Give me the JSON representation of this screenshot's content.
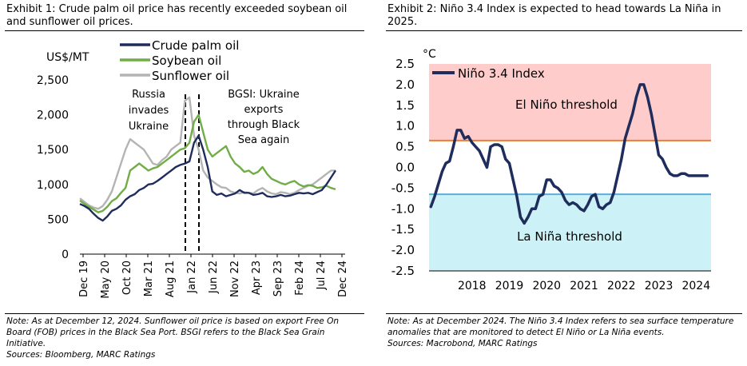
{
  "left_title": "Exhibit 1: Crude palm oil price has recently exceeded soybean oil and sunflower oil prices.",
  "left_note": "Note: As at December 12, 2024. Sunflower oil price is based on export Free On Board (FOB) prices in the Black Sea Port. BSGI refers to the Black Sea Grain Initiative.",
  "left_sources": "Sources: Bloomberg, MARC Ratings",
  "right_title": "Exhibit 2: Niño 3.4 Index is expected to head towards La Niña in 2025.",
  "right_note": "Note: As at December 2024. The Niño 3.4 Index refers to sea surface temperature anomalies that are monitored to detect El Niño or La Niña events.",
  "right_sources": "Sources: Macrobond, MARC Ratings",
  "chart_data": [
    {
      "type": "line",
      "ylabel": "US$/MT",
      "ylim": [
        0,
        2500
      ],
      "yticks": [
        "0",
        "500",
        "1,000",
        "1,500",
        "2,000",
        "2,500"
      ],
      "xticks": [
        "Dec 19",
        "May 20",
        "Oct 20",
        "Mar 21",
        "Aug 21",
        "Jan 22",
        "Jun 22",
        "Nov 22",
        "Apr 23",
        "Sep 23",
        "Feb 24",
        "Jul 24",
        "Dec 24"
      ],
      "legend_position": "top",
      "annotations": {
        "russia": [
          "Russia",
          "invades",
          "Ukraine"
        ],
        "bsgi": [
          "BGSI: Ukraine",
          "exports",
          "through Black",
          "Sea again"
        ]
      },
      "series": [
        {
          "name": "Crude palm oil",
          "color": "#1f2d5c",
          "values": [
            720,
            690,
            650,
            580,
            520,
            480,
            540,
            620,
            650,
            700,
            780,
            830,
            860,
            920,
            950,
            1000,
            1010,
            1050,
            1100,
            1150,
            1200,
            1250,
            1280,
            1300,
            1330,
            1600,
            1700,
            1500,
            1250,
            900,
            850,
            870,
            830,
            850,
            870,
            920,
            880,
            880,
            850,
            860,
            880,
            830,
            820,
            830,
            850,
            830,
            840,
            860,
            880,
            870,
            880,
            860,
            890,
            920,
            1000,
            1100,
            1200
          ]
        },
        {
          "name": "Soybean oil",
          "color": "#70ad47",
          "values": [
            770,
            720,
            680,
            640,
            600,
            620,
            680,
            760,
            800,
            880,
            950,
            1200,
            1250,
            1300,
            1250,
            1200,
            1230,
            1250,
            1300,
            1350,
            1400,
            1450,
            1500,
            1520,
            1600,
            1900,
            2000,
            1750,
            1500,
            1400,
            1450,
            1500,
            1550,
            1400,
            1300,
            1250,
            1180,
            1200,
            1150,
            1180,
            1250,
            1150,
            1080,
            1050,
            1020,
            1000,
            1030,
            1050,
            1000,
            970,
            990,
            980,
            950,
            960,
            980,
            950,
            930
          ]
        },
        {
          "name": "Sunflower oil",
          "color": "#b4b4b4",
          "values": [
            800,
            750,
            700,
            670,
            650,
            690,
            780,
            900,
            1100,
            1300,
            1500,
            1650,
            1600,
            1550,
            1500,
            1400,
            1300,
            1280,
            1350,
            1400,
            1500,
            1550,
            1600,
            2200,
            2250,
            1700,
            1500,
            1200,
            1100,
            1050,
            1000,
            960,
            950,
            900,
            880,
            870,
            890,
            880,
            870,
            920,
            950,
            900,
            870,
            860,
            890,
            880,
            860,
            880,
            920,
            950,
            980,
            1000,
            1050,
            1100,
            1150,
            1200,
            1200
          ]
        }
      ]
    },
    {
      "type": "line",
      "ylabel": "°C",
      "ylim": [
        -2.5,
        2.5
      ],
      "yticks": [
        "2.5",
        "2.0",
        "1.5",
        "1.0",
        "0.5",
        "0.0",
        "-0.5",
        "-1.0",
        "-1.5",
        "-2.0",
        "-2.5"
      ],
      "xticks": [
        "2018",
        "2019",
        "2020",
        "2021",
        "2022",
        "2023",
        "2024"
      ],
      "x_range": [
        2017.35,
        2024.9
      ],
      "el_nino_threshold": 0.65,
      "la_nina_threshold": -0.65,
      "el_nino_label": "El Niño threshold",
      "la_nina_label": "La Niña threshold",
      "el_nino_color": "#ffcccc",
      "la_nina_color": "#ccf2f7",
      "el_nino_line_color": "#ed7d31",
      "la_nina_line_color": "#5aaee0",
      "legend_position": "top-left",
      "series": [
        {
          "name": "Niño 3.4 Index",
          "color": "#1f2d5c",
          "x": [
            2017.4,
            2017.5,
            2017.6,
            2017.7,
            2017.8,
            2017.9,
            2018.0,
            2018.1,
            2018.2,
            2018.3,
            2018.4,
            2018.5,
            2018.6,
            2018.7,
            2018.8,
            2018.9,
            2019.0,
            2019.1,
            2019.2,
            2019.3,
            2019.4,
            2019.5,
            2019.6,
            2019.7,
            2019.8,
            2019.9,
            2020.0,
            2020.1,
            2020.2,
            2020.3,
            2020.4,
            2020.5,
            2020.6,
            2020.7,
            2020.8,
            2020.9,
            2021.0,
            2021.1,
            2021.2,
            2021.3,
            2021.4,
            2021.5,
            2021.6,
            2021.7,
            2021.8,
            2021.9,
            2022.0,
            2022.1,
            2022.2,
            2022.3,
            2022.4,
            2022.5,
            2022.6,
            2022.7,
            2022.8,
            2022.9,
            2023.0,
            2023.1,
            2023.2,
            2023.3,
            2023.4,
            2023.5,
            2023.6,
            2023.7,
            2023.8,
            2023.9,
            2024.0,
            2024.1,
            2024.2,
            2024.3,
            2024.4,
            2024.5,
            2024.6,
            2024.7,
            2024.8
          ],
          "values": [
            -0.95,
            -0.7,
            -0.4,
            -0.1,
            0.1,
            0.15,
            0.5,
            0.9,
            0.9,
            0.7,
            0.75,
            0.6,
            0.5,
            0.4,
            0.2,
            0.0,
            0.5,
            0.55,
            0.55,
            0.5,
            0.2,
            0.1,
            -0.3,
            -0.7,
            -1.2,
            -1.35,
            -1.2,
            -1.0,
            -1.0,
            -0.7,
            -0.65,
            -0.3,
            -0.3,
            -0.45,
            -0.5,
            -0.6,
            -0.8,
            -0.9,
            -0.85,
            -0.9,
            -1.0,
            -1.05,
            -0.9,
            -0.7,
            -0.65,
            -0.95,
            -1.0,
            -0.9,
            -0.85,
            -0.6,
            -0.2,
            0.2,
            0.7,
            1.0,
            1.3,
            1.7,
            2.0,
            2.0,
            1.7,
            1.3,
            0.8,
            0.3,
            0.2,
            0.0,
            -0.15,
            -0.2,
            -0.2,
            -0.15,
            -0.15,
            -0.2,
            -0.2,
            -0.2,
            -0.2,
            -0.2,
            -0.2
          ]
        }
      ]
    }
  ]
}
